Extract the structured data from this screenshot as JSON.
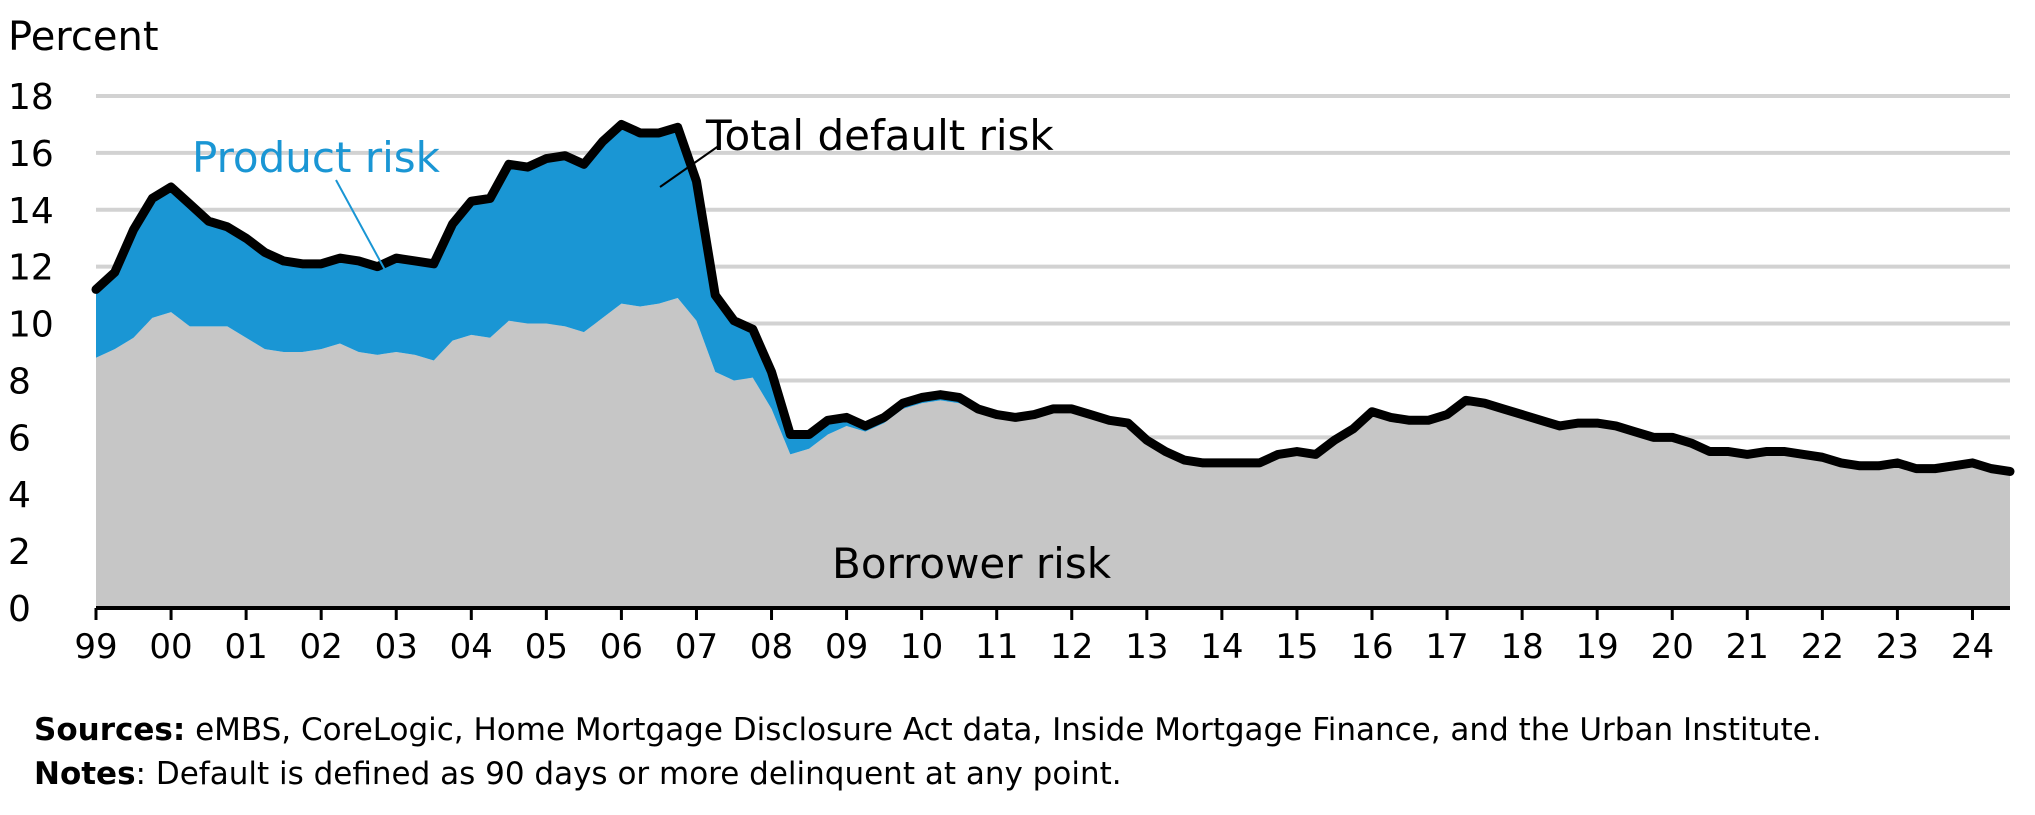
{
  "chart_data": {
    "type": "area",
    "ylabel": "Percent",
    "ylim": [
      0,
      18
    ],
    "yticks": [
      0,
      2,
      4,
      6,
      8,
      10,
      12,
      14,
      16,
      18
    ],
    "grid": true,
    "xlim": [
      1999.0,
      2024.5
    ],
    "xticks": [
      {
        "x": 1999,
        "label": "99"
      },
      {
        "x": 2000,
        "label": "00"
      },
      {
        "x": 2001,
        "label": "01"
      },
      {
        "x": 2002,
        "label": "02"
      },
      {
        "x": 2003,
        "label": "03"
      },
      {
        "x": 2004,
        "label": "04"
      },
      {
        "x": 2005,
        "label": "05"
      },
      {
        "x": 2006,
        "label": "06"
      },
      {
        "x": 2007,
        "label": "07"
      },
      {
        "x": 2008,
        "label": "08"
      },
      {
        "x": 2009,
        "label": "09"
      },
      {
        "x": 2010,
        "label": "10"
      },
      {
        "x": 2011,
        "label": "11"
      },
      {
        "x": 2012,
        "label": "12"
      },
      {
        "x": 2013,
        "label": "13"
      },
      {
        "x": 2014,
        "label": "14"
      },
      {
        "x": 2015,
        "label": "15"
      },
      {
        "x": 2016,
        "label": "16"
      },
      {
        "x": 2017,
        "label": "17"
      },
      {
        "x": 2018,
        "label": "18"
      },
      {
        "x": 2019,
        "label": "19"
      },
      {
        "x": 2020,
        "label": "20"
      },
      {
        "x": 2021,
        "label": "21"
      },
      {
        "x": 2022,
        "label": "22"
      },
      {
        "x": 2023,
        "label": "23"
      },
      {
        "x": 2024,
        "label": "24"
      }
    ],
    "x": [
      1999.0,
      1999.25,
      1999.5,
      1999.75,
      2000.0,
      2000.25,
      2000.5,
      2000.75,
      2001.0,
      2001.25,
      2001.5,
      2001.75,
      2002.0,
      2002.25,
      2002.5,
      2002.75,
      2003.0,
      2003.25,
      2003.5,
      2003.75,
      2004.0,
      2004.25,
      2004.5,
      2004.75,
      2005.0,
      2005.25,
      2005.5,
      2005.75,
      2006.0,
      2006.25,
      2006.5,
      2006.75,
      2007.0,
      2007.25,
      2007.5,
      2007.75,
      2008.0,
      2008.25,
      2008.5,
      2008.75,
      2009.0,
      2009.25,
      2009.5,
      2009.75,
      2010.0,
      2010.25,
      2010.5,
      2010.75,
      2011.0,
      2011.25,
      2011.5,
      2011.75,
      2012.0,
      2012.25,
      2012.5,
      2012.75,
      2013.0,
      2013.25,
      2013.5,
      2013.75,
      2014.0,
      2014.25,
      2014.5,
      2014.75,
      2015.0,
      2015.25,
      2015.5,
      2015.75,
      2016.0,
      2016.25,
      2016.5,
      2016.75,
      2017.0,
      2017.25,
      2017.5,
      2017.75,
      2018.0,
      2018.25,
      2018.5,
      2018.75,
      2019.0,
      2019.25,
      2019.5,
      2019.75,
      2020.0,
      2020.25,
      2020.5,
      2020.75,
      2021.0,
      2021.25,
      2021.5,
      2021.75,
      2022.0,
      2022.25,
      2022.5,
      2022.75,
      2023.0,
      2023.25,
      2023.5,
      2023.75,
      2024.0,
      2024.25,
      2024.5
    ],
    "series": [
      {
        "name": "Borrower risk",
        "color": "#c6c6c6",
        "role": "area",
        "values": [
          8.8,
          9.1,
          9.5,
          10.2,
          10.4,
          9.9,
          9.9,
          9.9,
          9.5,
          9.1,
          9.0,
          9.0,
          9.1,
          9.3,
          9.0,
          8.9,
          9.0,
          8.9,
          8.7,
          9.4,
          9.6,
          9.5,
          10.1,
          10.0,
          10.0,
          9.9,
          9.7,
          10.2,
          10.7,
          10.6,
          10.7,
          10.9,
          10.1,
          8.3,
          8.0,
          8.1,
          7.0,
          5.4,
          5.6,
          6.1,
          6.4,
          6.2,
          6.5,
          7.0,
          7.2,
          7.3,
          7.2,
          6.9,
          6.8,
          6.7,
          6.8,
          7.0,
          7.0,
          6.8,
          6.6,
          6.5,
          5.9,
          5.5,
          5.2,
          5.1,
          5.1,
          5.1,
          5.1,
          5.4,
          5.5,
          5.4,
          5.9,
          6.3,
          6.9,
          6.7,
          6.6,
          6.6,
          6.8,
          7.3,
          7.2,
          7.0,
          6.8,
          6.6,
          6.4,
          6.5,
          6.5,
          6.4,
          6.2,
          6.0,
          6.0,
          5.8,
          5.5,
          5.5,
          5.4,
          5.5,
          5.5,
          5.4,
          5.3,
          5.1,
          5.0,
          5.0,
          5.1,
          4.9,
          4.9,
          5.0,
          5.1,
          4.9,
          4.8
        ]
      },
      {
        "name": "Product risk",
        "color": "#1a96d4",
        "role": "area",
        "values": [
          2.4,
          2.7,
          3.8,
          4.2,
          4.4,
          4.3,
          3.7,
          3.5,
          3.5,
          3.4,
          3.2,
          3.1,
          3.0,
          3.0,
          3.2,
          3.1,
          3.3,
          3.3,
          3.4,
          4.1,
          4.7,
          4.9,
          5.5,
          5.5,
          5.8,
          6.0,
          5.9,
          6.2,
          6.3,
          6.1,
          6.0,
          6.0,
          4.9,
          2.7,
          2.1,
          1.7,
          1.3,
          0.7,
          0.5,
          0.5,
          0.3,
          0.2,
          0.2,
          0.2,
          0.2,
          0.2,
          0.2,
          0.1,
          0.1,
          0.0,
          0.0,
          0.0,
          0.0,
          0.0,
          0.0,
          0.0,
          0.0,
          0.0,
          0.0,
          0.0,
          0.0,
          0.0,
          0.0,
          0.0,
          0.0,
          0.0,
          0.0,
          0.0,
          0.0,
          0.0,
          0.0,
          0.0,
          0.0,
          0.0,
          0.0,
          0.0,
          0.0,
          0.0,
          0.0,
          0.0,
          0.0,
          0.0,
          0.0,
          0.0,
          0.0,
          0.0,
          0.0,
          0.0,
          0.0,
          0.0,
          0.0,
          0.0,
          0.0,
          0.0,
          0.0,
          0.0,
          0.0,
          0.0,
          0.0,
          0.0,
          0.0,
          0.0,
          0.0
        ]
      },
      {
        "name": "Total default risk",
        "color": "#000000",
        "role": "line",
        "values": [
          11.2,
          11.8,
          13.3,
          14.4,
          14.8,
          14.2,
          13.6,
          13.4,
          13.0,
          12.5,
          12.2,
          12.1,
          12.1,
          12.3,
          12.2,
          12.0,
          12.3,
          12.2,
          12.1,
          13.5,
          14.3,
          14.4,
          15.6,
          15.5,
          15.8,
          15.9,
          15.6,
          16.4,
          17.0,
          16.7,
          16.7,
          16.9,
          15.0,
          11.0,
          10.1,
          9.8,
          8.3,
          6.1,
          6.1,
          6.6,
          6.7,
          6.4,
          6.7,
          7.2,
          7.4,
          7.5,
          7.4,
          7.0,
          6.8,
          6.7,
          6.8,
          7.0,
          7.0,
          6.8,
          6.6,
          6.5,
          5.9,
          5.5,
          5.2,
          5.1,
          5.1,
          5.1,
          5.1,
          5.4,
          5.5,
          5.4,
          5.9,
          6.3,
          6.9,
          6.7,
          6.6,
          6.6,
          6.8,
          7.3,
          7.2,
          7.0,
          6.8,
          6.6,
          6.4,
          6.5,
          6.5,
          6.4,
          6.2,
          6.0,
          6.0,
          5.8,
          5.5,
          5.5,
          5.4,
          5.5,
          5.5,
          5.4,
          5.3,
          5.1,
          5.0,
          5.0,
          5.1,
          4.9,
          4.9,
          5.0,
          5.1,
          4.9,
          4.8
        ]
      }
    ],
    "annotations": {
      "product": "Product risk",
      "total": "Total default risk",
      "borrower": "Borrower risk"
    }
  },
  "footer": {
    "sources_label": "Sources:",
    "sources_text": " eMBS, CoreLogic, Home Mortgage Disclosure Act data, Inside Mortgage Finance, and the Urban Institute.",
    "notes_label": "Notes",
    "notes_text": ": Default is defined as 90 days or more delinquent at any point."
  }
}
